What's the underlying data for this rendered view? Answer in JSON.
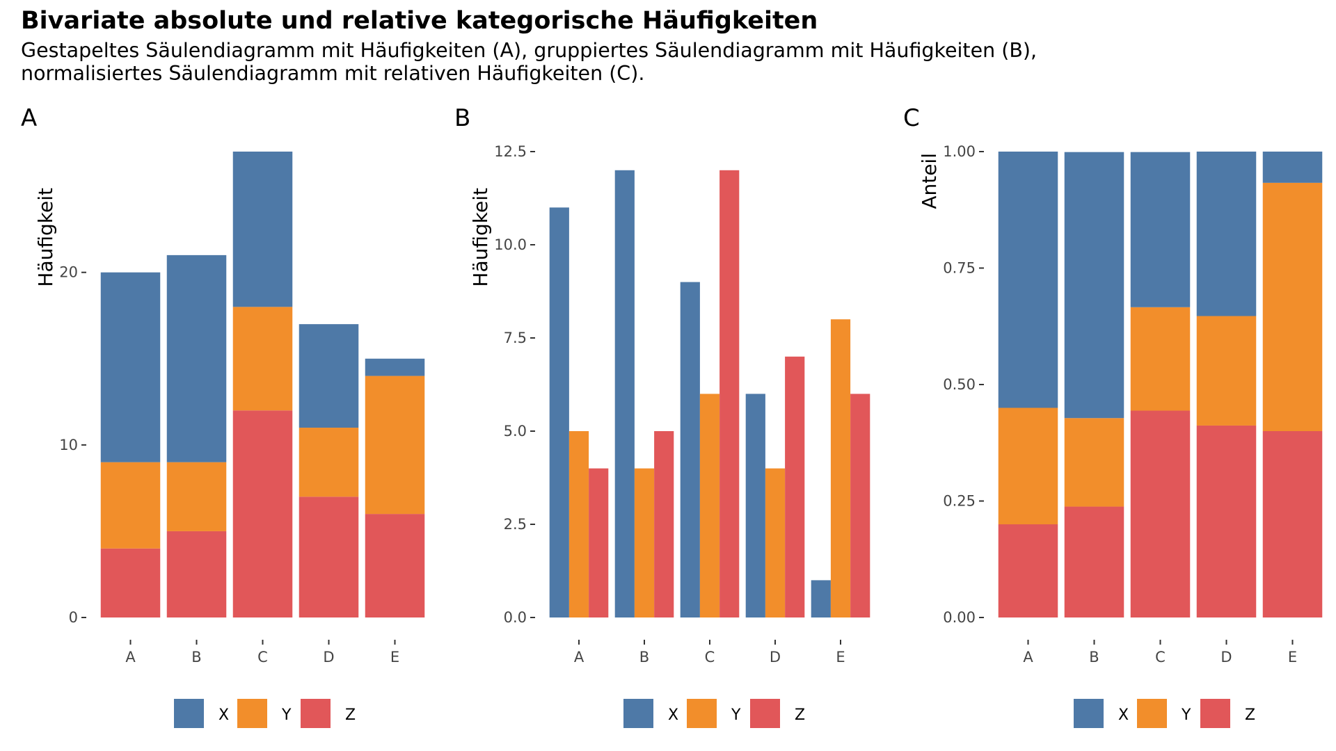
{
  "title": "Bivariate absolute und relative kategorische Häufigkeiten",
  "subtitle_line1": "Gestapeltes Säulendiagramm mit Häufigkeiten (A), gruppiertes Säulendiagramm mit Häufigkeiten (B),",
  "subtitle_line2": "normalisiertes Säulendiagramm mit relativen Häufigkeiten (C).",
  "colors": {
    "X": "#4e79a7",
    "Y": "#f28e2b",
    "Z": "#e15759"
  },
  "chart_data": [
    {
      "panel": "A",
      "type": "bar",
      "mode": "stacked",
      "categories": [
        "A",
        "B",
        "C",
        "D",
        "E"
      ],
      "series": [
        {
          "name": "X",
          "values": [
            11,
            12,
            9,
            6,
            1
          ]
        },
        {
          "name": "Y",
          "values": [
            5,
            4,
            6,
            4,
            8
          ]
        },
        {
          "name": "Z",
          "values": [
            4,
            5,
            12,
            7,
            6
          ]
        }
      ],
      "ylabel": "Häufigkeit",
      "ylim": [
        0,
        27
      ],
      "yticks": [
        0,
        10,
        20
      ],
      "ytick_labels": [
        "0",
        "10",
        "20"
      ],
      "legend": "bottom"
    },
    {
      "panel": "B",
      "type": "bar",
      "mode": "grouped",
      "categories": [
        "A",
        "B",
        "C",
        "D",
        "E"
      ],
      "series": [
        {
          "name": "X",
          "values": [
            11,
            12,
            9,
            6,
            1
          ]
        },
        {
          "name": "Y",
          "values": [
            5,
            4,
            6,
            4,
            8
          ]
        },
        {
          "name": "Z",
          "values": [
            4,
            5,
            12,
            7,
            6
          ]
        }
      ],
      "ylabel": "Häufigkeit",
      "ylim": [
        0,
        12.5
      ],
      "yticks": [
        0,
        2.5,
        5,
        7.5,
        10,
        12.5
      ],
      "ytick_labels": [
        "0.0",
        "2.5",
        "5.0",
        "7.5",
        "10.0",
        "12.5"
      ],
      "legend": "bottom"
    },
    {
      "panel": "C",
      "type": "bar",
      "mode": "normalized",
      "categories": [
        "A",
        "B",
        "C",
        "D",
        "E"
      ],
      "series": [
        {
          "name": "X",
          "values": [
            0.55,
            0.571,
            0.333,
            0.353,
            0.067
          ]
        },
        {
          "name": "Y",
          "values": [
            0.25,
            0.19,
            0.222,
            0.235,
            0.533
          ]
        },
        {
          "name": "Z",
          "values": [
            0.2,
            0.238,
            0.444,
            0.412,
            0.4
          ]
        }
      ],
      "ylabel": "Anteil",
      "ylim": [
        0,
        1
      ],
      "yticks": [
        0,
        0.25,
        0.5,
        0.75,
        1
      ],
      "ytick_labels": [
        "0.00",
        "0.25",
        "0.50",
        "0.75",
        "1.00"
      ],
      "legend": "bottom"
    }
  ]
}
